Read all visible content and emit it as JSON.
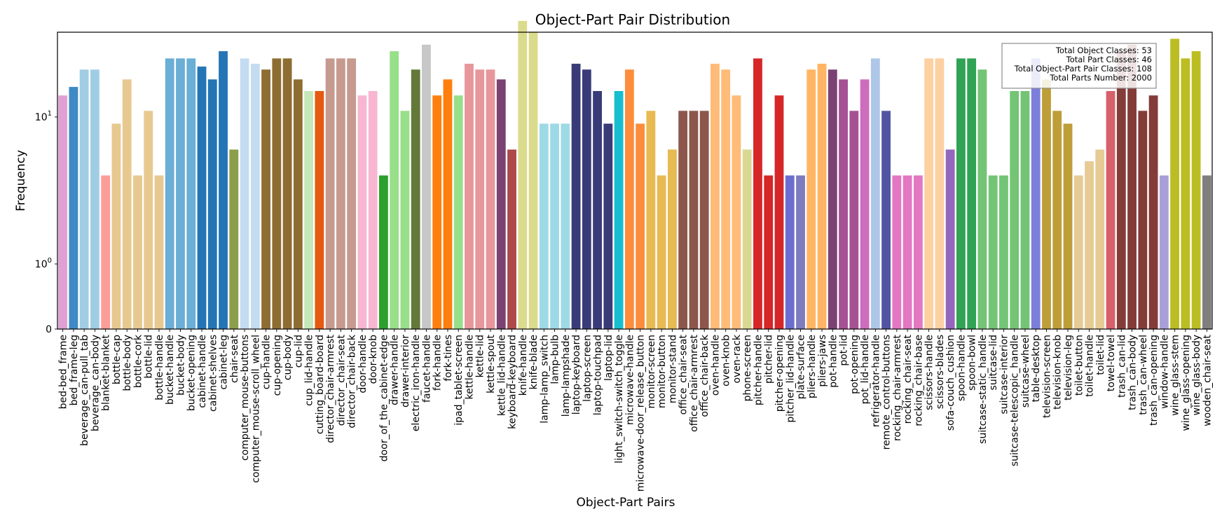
{
  "chart_data": {
    "type": "bar",
    "title": "Object-Part Pair Distribution",
    "xlabel": "Object-Part Pairs",
    "ylabel": "Frequency",
    "yscale": "symlog",
    "y_ticks": [
      {
        "value": 0,
        "label": "0"
      },
      {
        "value": 1,
        "label": "10^0"
      },
      {
        "value": 10,
        "label": "10^1"
      }
    ],
    "stats": [
      "Total Object Classes: 53",
      "Total Part Classes: 46",
      "Total Object-Part Pair Classes: 108",
      "Total Parts Number: 2000"
    ],
    "categories": [
      "bed-bed_frame",
      "bed_frame-leg",
      "beverage_can-pull_tab",
      "beverage_can-body",
      "blanket-blanket",
      "bottle-cap",
      "bottle-body",
      "bottle-cork",
      "bottle-lid",
      "bottle-handle",
      "bucket-handle",
      "bucket-body",
      "bucket-opening",
      "cabinet-handle",
      "cabinet-shelves",
      "cabinet-leg",
      "chair-seat",
      "computer_mouse-buttons",
      "computer_mouse-scroll_wheel",
      "cup-handle",
      "cup-opening",
      "cup-body",
      "cup-lid",
      "cup_lid-handle",
      "cutting_board-board",
      "director_chair-armrest",
      "director_chair-seat",
      "director_chair-back",
      "door-handle",
      "door-knob",
      "door_of_the_cabinet-edge",
      "drawer-handle",
      "drawer-interior",
      "electric_iron-handle",
      "faucet-handle",
      "fork-handle",
      "fork-tines",
      "ipad_tablet-screen",
      "kettle-handle",
      "kettle-lid",
      "kettle-spout",
      "kettle_lid-handle",
      "keyboard-keyboard",
      "knife-handle",
      "knife-blade",
      "lamp-lamp_switch",
      "lamp-bulb",
      "lamp-lampshade",
      "laptop-keyboard",
      "laptop-screen",
      "laptop-touchpad",
      "laptop-lid",
      "light_switch-switch_toggle",
      "microwave-handle",
      "microwave-door_release_button",
      "monitor-screen",
      "monitor-button",
      "monitor-stand",
      "office_chair-seat",
      "office_chair-armrest",
      "office_chair-back",
      "oven-handle",
      "oven-knob",
      "oven-rack",
      "phone-screen",
      "pitcher-handle",
      "pitcher-lid",
      "pitcher-opening",
      "pitcher_lid-handle",
      "plate-surface",
      "pliers-handle",
      "pliers-jaws",
      "pot-handle",
      "pot-lid",
      "pot-opening",
      "pot_lid-handle",
      "refrigerator-handle",
      "remote_control-buttons",
      "rocking_chair-armrest",
      "rocking_chair-seat",
      "rocking_chair-base",
      "scissors-handle",
      "scissors-blades",
      "sofa-couch_cushion",
      "spoon-handle",
      "spoon-bowl",
      "suitcase-static_handle",
      "suitcase-lid",
      "suitcase-interior",
      "suitcase-telescopic_handle",
      "suitcase-wheel",
      "table-desktop",
      "television-screen",
      "television-knob",
      "television-leg",
      "toilet-button",
      "toilet-handle",
      "toilet-lid",
      "towel-towel",
      "trash_can-lid",
      "trash_can-body",
      "trash_can-wheel",
      "trash_can-opening",
      "window-handle",
      "wine_glass-stem",
      "wine_glass-opening",
      "wine_glass-body",
      "wooden_chair-seat"
    ],
    "values": [
      14,
      16,
      21,
      21,
      4,
      9,
      18,
      4,
      11,
      4,
      25,
      25,
      25,
      22,
      18,
      28,
      6,
      25,
      23,
      21,
      25,
      25,
      18,
      15,
      15,
      25,
      25,
      25,
      14,
      15,
      4,
      28,
      11,
      21,
      31,
      14,
      18,
      14,
      23,
      21,
      21,
      18,
      6,
      45,
      38,
      9,
      9,
      9,
      23,
      21,
      15,
      9,
      15,
      21,
      9,
      11,
      4,
      6,
      11,
      11,
      11,
      23,
      21,
      14,
      6,
      25,
      4,
      14,
      4,
      4,
      21,
      23,
      21,
      18,
      11,
      18,
      25,
      11,
      4,
      4,
      4,
      25,
      25,
      6,
      25,
      25,
      21,
      4,
      4,
      15,
      15,
      25,
      18,
      11,
      9,
      4,
      5,
      6,
      15,
      28,
      31,
      11,
      14,
      4,
      34,
      25,
      28,
      4
    ],
    "colors": [
      "#e0a1d2",
      "#3d8ac4",
      "#a0cde4",
      "#a0cde4",
      "#fc9d9a",
      "#e7c990",
      "#e7c990",
      "#e7c990",
      "#e7c990",
      "#e7c990",
      "#6baed6",
      "#6baed6",
      "#6baed6",
      "#2375b6",
      "#2375b6",
      "#2375b6",
      "#8c9e4b",
      "#c4dcf0",
      "#c4dcf0",
      "#8e6d32",
      "#8e6d32",
      "#8e6d32",
      "#8e6d32",
      "#c6e7b8",
      "#e55a11",
      "#c69a8f",
      "#c69a8f",
      "#c69a8f",
      "#f7b6d2",
      "#f7b6d2",
      "#2ca02c",
      "#98df8a",
      "#98df8a",
      "#637939",
      "#c7c7c7",
      "#ff7f0e",
      "#ff7f0e",
      "#98df8a",
      "#e7969c",
      "#e7969c",
      "#e7969c",
      "#7b4173",
      "#ad494a",
      "#dbdb8d",
      "#dbdb8d",
      "#9edae5",
      "#9edae5",
      "#9edae5",
      "#393b79",
      "#393b79",
      "#393b79",
      "#393b79",
      "#17becf",
      "#fd8d3c",
      "#fd8d3c",
      "#e7ba52",
      "#e7ba52",
      "#e7ba52",
      "#8c564b",
      "#8c564b",
      "#8c564b",
      "#ffbb78",
      "#ffbb78",
      "#ffbb78",
      "#d8d893",
      "#d62728",
      "#d62728",
      "#d62728",
      "#6b6ecf",
      "#7e7bbe",
      "#ffb563",
      "#ffb563",
      "#7b4173",
      "#a55194",
      "#a55194",
      "#ce6dbd",
      "#aec7e8",
      "#5254a3",
      "#e377c2",
      "#e377c2",
      "#e377c2",
      "#fdd0a2",
      "#fdd0a2",
      "#9467bd",
      "#31a354",
      "#31a354",
      "#74c476",
      "#74c476",
      "#74c476",
      "#74c476",
      "#74c476",
      "#7b7fdb",
      "#bd9e39",
      "#bd9e39",
      "#bd9e39",
      "#e7cb94",
      "#e7cb94",
      "#e7cb94",
      "#d6616b",
      "#843c39",
      "#843c39",
      "#843c39",
      "#843c39",
      "#a99fd8",
      "#bcbd22",
      "#bcbd22",
      "#bcbd22",
      "#7f7f7f"
    ]
  }
}
